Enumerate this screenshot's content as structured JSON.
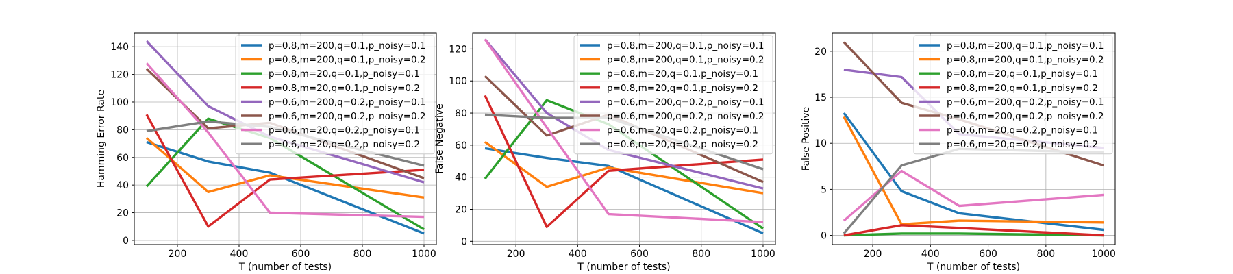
{
  "figure": {
    "legend_location": "upper-right",
    "grid": true
  },
  "chart_data": [
    {
      "type": "line",
      "xlabel": "T (number of tests)",
      "ylabel": "Hamming Error Rate",
      "xlim": [
        60,
        1040
      ],
      "ylim": [
        -3,
        150
      ],
      "xticks": [
        200,
        400,
        600,
        800,
        1000
      ],
      "yticks": [
        0,
        20,
        40,
        60,
        80,
        100,
        120,
        140
      ],
      "x": [
        100,
        300,
        500,
        1000
      ],
      "series": [
        {
          "name": "p=0.8,m=200,q=0.1,p_noisy=0.1",
          "color": "#1f77b4",
          "values": [
            71,
            57,
            49,
            5
          ]
        },
        {
          "name": "p=0.8,m=200,q=0.1,p_noisy=0.2",
          "color": "#ff7f0e",
          "values": [
            74,
            35,
            47,
            31
          ]
        },
        {
          "name": "p=0.8,m=20,q=0.1,p_noisy=0.1",
          "color": "#2ca02c",
          "values": [
            39,
            88,
            74,
            8
          ]
        },
        {
          "name": "p=0.8,m=20,q=0.1,p_noisy=0.2",
          "color": "#d62728",
          "values": [
            91,
            10,
            44,
            51
          ]
        },
        {
          "name": "p=0.6,m=200,q=0.2,p_noisy=0.1",
          "color": "#9467bd",
          "values": [
            144,
            97,
            75,
            42
          ]
        },
        {
          "name": "p=0.6,m=200,q=0.2,p_noisy=0.2",
          "color": "#8c564b",
          "values": [
            124,
            81,
            85,
            45
          ]
        },
        {
          "name": "p=0.6,m=20,q=0.2,p_noisy=0.1",
          "color": "#e377c2",
          "values": [
            128,
            78,
            20,
            17
          ]
        },
        {
          "name": "p=0.6,m=20,q=0.2,p_noisy=0.2",
          "color": "#7f7f7f",
          "values": [
            79,
            86,
            82,
            54
          ]
        }
      ]
    },
    {
      "type": "line",
      "xlabel": "T (number of tests)",
      "ylabel": "False Negative",
      "xlim": [
        60,
        1040
      ],
      "ylim": [
        -2,
        130
      ],
      "xticks": [
        200,
        400,
        600,
        800,
        1000
      ],
      "yticks": [
        0,
        20,
        40,
        60,
        80,
        100,
        120
      ],
      "x": [
        100,
        300,
        500,
        1000
      ],
      "series": [
        {
          "name": "p=0.8,m=200,q=0.1,p_noisy=0.1",
          "color": "#1f77b4",
          "values": [
            58,
            52,
            47,
            5
          ]
        },
        {
          "name": "p=0.8,m=200,q=0.1,p_noisy=0.2",
          "color": "#ff7f0e",
          "values": [
            62,
            34,
            46,
            30
          ]
        },
        {
          "name": "p=0.8,m=20,q=0.1,p_noisy=0.1",
          "color": "#2ca02c",
          "values": [
            39,
            88,
            73,
            8
          ]
        },
        {
          "name": "p=0.8,m=20,q=0.1,p_noisy=0.2",
          "color": "#d62728",
          "values": [
            91,
            9,
            44,
            51
          ]
        },
        {
          "name": "p=0.6,m=200,q=0.2,p_noisy=0.1",
          "color": "#9467bd",
          "values": [
            126,
            80,
            57,
            33
          ]
        },
        {
          "name": "p=0.6,m=200,q=0.2,p_noisy=0.2",
          "color": "#8c564b",
          "values": [
            103,
            66,
            79,
            37
          ]
        },
        {
          "name": "p=0.6,m=20,q=0.2,p_noisy=0.1",
          "color": "#e377c2",
          "values": [
            126,
            71,
            17,
            12
          ]
        },
        {
          "name": "p=0.6,m=20,q=0.2,p_noisy=0.2",
          "color": "#7f7f7f",
          "values": [
            79,
            77,
            77,
            45
          ]
        }
      ]
    },
    {
      "type": "line",
      "xlabel": "T (number of tests)",
      "ylabel": "False Positive",
      "xlim": [
        60,
        1040
      ],
      "ylim": [
        -1,
        22
      ],
      "xticks": [
        200,
        400,
        600,
        800,
        1000
      ],
      "yticks": [
        0,
        5,
        10,
        15,
        20
      ],
      "x": [
        100,
        300,
        500,
        1000
      ],
      "series": [
        {
          "name": "p=0.8,m=200,q=0.1,p_noisy=0.1",
          "color": "#1f77b4",
          "values": [
            13.3,
            4.8,
            2.4,
            0.6
          ]
        },
        {
          "name": "p=0.8,m=200,q=0.1,p_noisy=0.2",
          "color": "#ff7f0e",
          "values": [
            12.9,
            1.2,
            1.6,
            1.4
          ]
        },
        {
          "name": "p=0.8,m=20,q=0.1,p_noisy=0.1",
          "color": "#2ca02c",
          "values": [
            0.0,
            0.2,
            0.2,
            0.0
          ]
        },
        {
          "name": "p=0.8,m=20,q=0.1,p_noisy=0.2",
          "color": "#d62728",
          "values": [
            0.0,
            1.1,
            0.8,
            0.0
          ]
        },
        {
          "name": "p=0.6,m=200,q=0.2,p_noisy=0.1",
          "color": "#9467bd",
          "values": [
            18.0,
            17.2,
            11.0,
            9.5
          ]
        },
        {
          "name": "p=0.6,m=200,q=0.2,p_noisy=0.2",
          "color": "#8c564b",
          "values": [
            21.0,
            14.4,
            12.6,
            7.6
          ]
        },
        {
          "name": "p=0.6,m=20,q=0.2,p_noisy=0.1",
          "color": "#e377c2",
          "values": [
            1.6,
            7.0,
            3.2,
            4.4
          ]
        },
        {
          "name": "p=0.6,m=20,q=0.2,p_noisy=0.2",
          "color": "#7f7f7f",
          "values": [
            0.2,
            7.6,
            9.4,
            9.0
          ]
        }
      ]
    }
  ]
}
